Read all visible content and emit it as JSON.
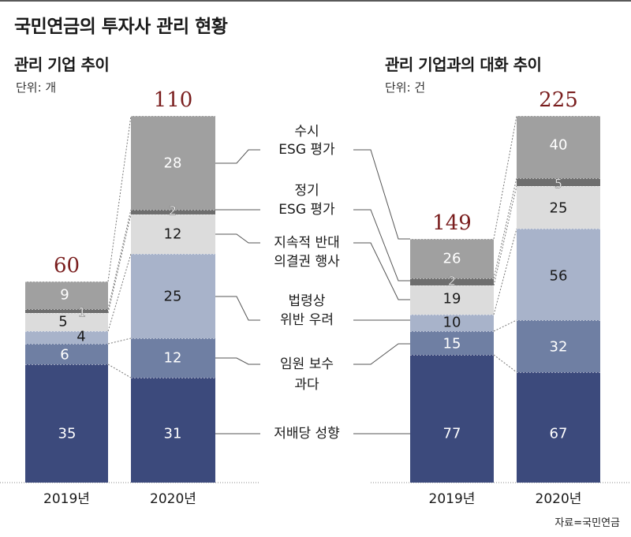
{
  "title": "국민연금의 투자사 관리 현황",
  "source": "자료=국민연금",
  "colors": {
    "dividend": "#3c4a7c",
    "compensation": "#6f7fa3",
    "violation": "#a8b3ca",
    "voting": "#dcdcdc",
    "regular_esg": "#6e6e6e",
    "adhoc_esg": "#a0a0a0",
    "total_label": "#7a1e1e"
  },
  "chart_data": [
    {
      "type": "bar",
      "stacked": true,
      "title": "관리 기업 추이",
      "unit": "단위: 개",
      "categories": [
        "2019년",
        "2020년"
      ],
      "totals": [
        "60",
        "110"
      ],
      "series": [
        {
          "name": "저배당 성향",
          "values": [
            35,
            31
          ]
        },
        {
          "name": "임원 보수 과다",
          "values": [
            6,
            12
          ]
        },
        {
          "name": "법령상 위반 우려",
          "values": [
            4,
            25
          ]
        },
        {
          "name": "지속적 반대 의결권 행사",
          "values": [
            5,
            12
          ]
        },
        {
          "name": "정기 ESG 평가",
          "values": [
            1,
            2
          ]
        },
        {
          "name": "수시 ESG 평가",
          "values": [
            9,
            28
          ]
        }
      ]
    },
    {
      "type": "bar",
      "stacked": true,
      "title": "관리 기업과의 대화 추이",
      "unit": "단위: 건",
      "categories": [
        "2019년",
        "2020년"
      ],
      "totals": [
        "149",
        "225"
      ],
      "series": [
        {
          "name": "저배당 성향",
          "values": [
            77,
            67
          ]
        },
        {
          "name": "임원 보수 과다",
          "values": [
            15,
            32
          ]
        },
        {
          "name": "법령상 위반 우려",
          "values": [
            10,
            56
          ]
        },
        {
          "name": "지속적 반대 의결권 행사",
          "values": [
            19,
            25
          ]
        },
        {
          "name": "정기 ESG 평가",
          "values": [
            2,
            5
          ]
        },
        {
          "name": "수시 ESG 평가",
          "values": [
            26,
            40
          ]
        }
      ]
    }
  ],
  "legend": [
    {
      "lines": [
        "수시",
        "ESG 평가"
      ]
    },
    {
      "lines": [
        "정기",
        "ESG 평가"
      ]
    },
    {
      "lines": [
        "지속적 반대",
        "의결권 행사"
      ]
    },
    {
      "lines": [
        "법령상",
        "위반 우려"
      ]
    },
    {
      "lines": [
        "임원 보수",
        "과다"
      ]
    },
    {
      "lines": [
        "저배당 성향"
      ]
    }
  ]
}
